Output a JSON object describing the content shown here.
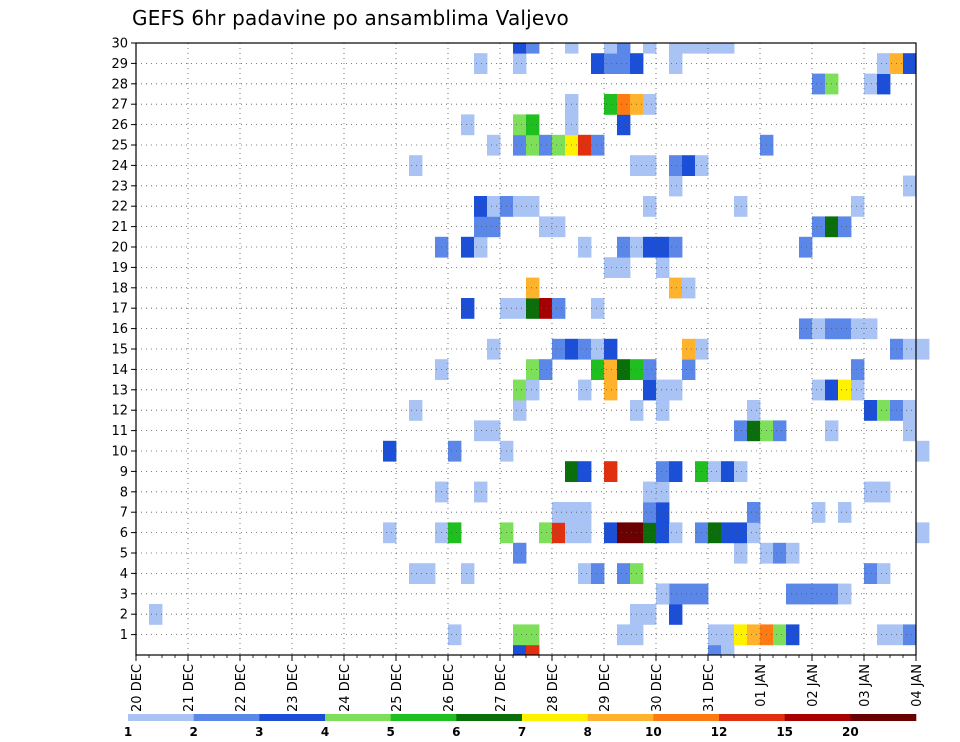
{
  "chart_data": {
    "type": "heatmap",
    "title": "GEFS 6hr padavine po ansamblima Valjevo",
    "x_tick_labels": [
      "20 DEC",
      "21 DEC",
      "22 DEC",
      "23 DEC",
      "24 DEC",
      "25 DEC",
      "26 DEC",
      "27 DEC",
      "28 DEC",
      "29 DEC",
      "30 DEC",
      "31 DEC",
      "01 JAN",
      "02 JAN",
      "03 JAN",
      "04 JAN"
    ],
    "y_tick_labels": [
      "1",
      "2",
      "3",
      "4",
      "5",
      "6",
      "7",
      "8",
      "9",
      "10",
      "11",
      "12",
      "13",
      "14",
      "15",
      "16",
      "17",
      "18",
      "19",
      "20",
      "21",
      "22",
      "23",
      "24",
      "25",
      "26",
      "27",
      "28",
      "29",
      "30"
    ],
    "xlim_steps": [
      0,
      60
    ],
    "ylim": [
      0,
      30
    ],
    "steps_per_day": 4,
    "grid": true,
    "colorbar": {
      "position": "bottom",
      "labels": [
        "1",
        "2",
        "3",
        "4",
        "5",
        "6",
        "7",
        "8",
        "10",
        "12",
        "15",
        "20"
      ],
      "colors": [
        "#a9c3f5",
        "#5a87e8",
        "#1b4fd8",
        "#7ee05a",
        "#1fbf1f",
        "#0a6e0a",
        "#fff200",
        "#ffb32c",
        "#ff7a10",
        "#e03010",
        "#a80000",
        "#6b0000"
      ]
    },
    "level_colors": {
      "1": "#a9c3f5",
      "2": "#5a87e8",
      "3": "#1b4fd8",
      "4": "#7ee05a",
      "5": "#1fbf1f",
      "6": "#0a6e0a",
      "7": "#fff200",
      "8": "#ffb32c",
      "9": "#ff7a10",
      "10": "#e03010",
      "11": "#a80000",
      "12": "#6b0000"
    },
    "cells_format": "[time_step_from_20DEC_00z, member_row, level_bin]",
    "cells": [
      [
        29,
        0,
        3
      ],
      [
        44,
        0,
        2
      ],
      [
        45,
        0,
        1
      ],
      [
        30,
        0,
        10
      ],
      [
        24,
        1,
        1
      ],
      [
        37,
        1,
        1
      ],
      [
        38,
        1,
        1
      ],
      [
        44,
        1,
        1
      ],
      [
        45,
        1,
        1
      ],
      [
        57,
        1,
        1
      ],
      [
        58,
        1,
        1
      ],
      [
        59,
        1,
        2
      ],
      [
        29,
        1,
        4
      ],
      [
        30,
        1,
        4
      ],
      [
        46,
        1,
        7
      ],
      [
        47,
        1,
        8
      ],
      [
        48,
        1,
        9
      ],
      [
        49,
        1,
        4
      ],
      [
        50,
        1,
        3
      ],
      [
        1,
        2,
        1
      ],
      [
        38,
        2,
        1
      ],
      [
        39,
        2,
        1
      ],
      [
        41,
        2,
        3
      ],
      [
        41,
        3,
        2
      ],
      [
        42,
        3,
        2
      ],
      [
        43,
        3,
        2
      ],
      [
        40,
        3,
        2
      ],
      [
        50,
        3,
        2
      ],
      [
        51,
        3,
        2
      ],
      [
        52,
        3,
        2
      ],
      [
        53,
        3,
        2
      ],
      [
        54,
        3,
        1
      ],
      [
        40,
        3,
        1
      ],
      [
        21,
        4,
        1
      ],
      [
        22,
        4,
        1
      ],
      [
        25,
        4,
        1
      ],
      [
        34,
        4,
        1
      ],
      [
        35,
        4,
        2
      ],
      [
        37,
        4,
        2
      ],
      [
        38,
        4,
        4
      ],
      [
        56,
        4,
        2
      ],
      [
        57,
        4,
        1
      ],
      [
        29,
        5,
        2
      ],
      [
        46,
        5,
        1
      ],
      [
        48,
        5,
        1
      ],
      [
        49,
        5,
        2
      ],
      [
        50,
        5,
        1
      ],
      [
        19,
        6,
        1
      ],
      [
        23,
        6,
        1
      ],
      [
        24,
        6,
        5
      ],
      [
        28,
        6,
        4
      ],
      [
        31,
        6,
        4
      ],
      [
        32,
        6,
        10
      ],
      [
        33,
        6,
        1
      ],
      [
        34,
        6,
        1
      ],
      [
        36,
        6,
        3
      ],
      [
        37,
        6,
        12
      ],
      [
        38,
        6,
        12
      ],
      [
        39,
        6,
        6
      ],
      [
        40,
        6,
        3
      ],
      [
        41,
        6,
        1
      ],
      [
        43,
        6,
        2
      ],
      [
        44,
        6,
        6
      ],
      [
        45,
        6,
        3
      ],
      [
        46,
        6,
        3
      ],
      [
        47,
        6,
        1
      ],
      [
        60,
        6,
        1
      ],
      [
        32,
        7,
        1
      ],
      [
        33,
        7,
        1
      ],
      [
        34,
        7,
        1
      ],
      [
        39,
        7,
        2
      ],
      [
        40,
        7,
        3
      ],
      [
        47,
        7,
        2
      ],
      [
        52,
        7,
        1
      ],
      [
        54,
        7,
        1
      ],
      [
        23,
        8,
        1
      ],
      [
        26,
        8,
        1
      ],
      [
        39,
        8,
        1
      ],
      [
        40,
        8,
        1
      ],
      [
        56,
        8,
        1
      ],
      [
        57,
        8,
        1
      ],
      [
        33,
        9,
        6
      ],
      [
        34,
        9,
        3
      ],
      [
        36,
        9,
        10
      ],
      [
        40,
        9,
        2
      ],
      [
        41,
        9,
        3
      ],
      [
        43,
        9,
        5
      ],
      [
        44,
        9,
        1
      ],
      [
        45,
        9,
        3
      ],
      [
        46,
        9,
        1
      ],
      [
        19,
        10,
        3
      ],
      [
        24,
        10,
        2
      ],
      [
        28,
        10,
        1
      ],
      [
        60,
        10,
        1
      ],
      [
        26,
        11,
        1
      ],
      [
        27,
        11,
        1
      ],
      [
        46,
        11,
        2
      ],
      [
        47,
        11,
        6
      ],
      [
        48,
        11,
        4
      ],
      [
        49,
        11,
        2
      ],
      [
        53,
        11,
        1
      ],
      [
        59,
        11,
        1
      ],
      [
        21,
        12,
        1
      ],
      [
        29,
        12,
        1
      ],
      [
        38,
        12,
        1
      ],
      [
        40,
        12,
        1
      ],
      [
        47,
        12,
        1
      ],
      [
        56,
        12,
        3
      ],
      [
        57,
        12,
        4
      ],
      [
        58,
        12,
        2
      ],
      [
        59,
        12,
        1
      ],
      [
        29,
        13,
        4
      ],
      [
        30,
        13,
        1
      ],
      [
        34,
        13,
        1
      ],
      [
        36,
        13,
        8
      ],
      [
        39,
        13,
        3
      ],
      [
        40,
        13,
        1
      ],
      [
        41,
        13,
        1
      ],
      [
        52,
        13,
        1
      ],
      [
        53,
        13,
        3
      ],
      [
        54,
        13,
        7
      ],
      [
        55,
        13,
        1
      ],
      [
        23,
        14,
        1
      ],
      [
        30,
        14,
        4
      ],
      [
        31,
        14,
        2
      ],
      [
        35,
        14,
        5
      ],
      [
        36,
        14,
        8
      ],
      [
        37,
        14,
        6
      ],
      [
        38,
        14,
        5
      ],
      [
        39,
        14,
        2
      ],
      [
        42,
        14,
        2
      ],
      [
        55,
        14,
        2
      ],
      [
        27,
        15,
        1
      ],
      [
        32,
        15,
        2
      ],
      [
        33,
        15,
        3
      ],
      [
        34,
        15,
        2
      ],
      [
        35,
        15,
        1
      ],
      [
        36,
        15,
        3
      ],
      [
        42,
        15,
        8
      ],
      [
        43,
        15,
        1
      ],
      [
        58,
        15,
        2
      ],
      [
        59,
        15,
        1
      ],
      [
        60,
        15,
        1
      ],
      [
        51,
        16,
        2
      ],
      [
        52,
        16,
        1
      ],
      [
        53,
        16,
        2
      ],
      [
        54,
        16,
        2
      ],
      [
        55,
        16,
        1
      ],
      [
        56,
        16,
        1
      ],
      [
        25,
        17,
        3
      ],
      [
        28,
        17,
        1
      ],
      [
        29,
        17,
        1
      ],
      [
        30,
        17,
        6
      ],
      [
        31,
        17,
        11
      ],
      [
        32,
        17,
        2
      ],
      [
        35,
        17,
        1
      ],
      [
        30,
        18,
        8
      ],
      [
        41,
        18,
        8
      ],
      [
        42,
        18,
        1
      ],
      [
        36,
        19,
        1
      ],
      [
        37,
        19,
        1
      ],
      [
        40,
        19,
        1
      ],
      [
        23,
        20,
        2
      ],
      [
        25,
        20,
        3
      ],
      [
        26,
        20,
        1
      ],
      [
        34,
        20,
        1
      ],
      [
        37,
        20,
        2
      ],
      [
        38,
        20,
        1
      ],
      [
        39,
        20,
        3
      ],
      [
        40,
        20,
        3
      ],
      [
        41,
        20,
        2
      ],
      [
        51,
        20,
        2
      ],
      [
        26,
        21,
        2
      ],
      [
        27,
        21,
        2
      ],
      [
        31,
        21,
        1
      ],
      [
        32,
        21,
        1
      ],
      [
        52,
        21,
        2
      ],
      [
        53,
        21,
        6
      ],
      [
        54,
        21,
        2
      ],
      [
        26,
        22,
        3
      ],
      [
        27,
        22,
        1
      ],
      [
        28,
        22,
        2
      ],
      [
        29,
        22,
        1
      ],
      [
        30,
        22,
        1
      ],
      [
        39,
        22,
        1
      ],
      [
        46,
        22,
        1
      ],
      [
        55,
        22,
        1
      ],
      [
        41,
        23,
        1
      ],
      [
        59,
        23,
        1
      ],
      [
        21,
        24,
        1
      ],
      [
        38,
        24,
        1
      ],
      [
        39,
        24,
        1
      ],
      [
        41,
        24,
        2
      ],
      [
        42,
        24,
        3
      ],
      [
        43,
        24,
        1
      ],
      [
        27,
        25,
        1
      ],
      [
        29,
        25,
        2
      ],
      [
        30,
        25,
        4
      ],
      [
        31,
        25,
        2
      ],
      [
        32,
        25,
        4
      ],
      [
        33,
        25,
        7
      ],
      [
        34,
        25,
        10
      ],
      [
        35,
        25,
        2
      ],
      [
        48,
        25,
        2
      ],
      [
        25,
        26,
        1
      ],
      [
        29,
        26,
        4
      ],
      [
        30,
        26,
        5
      ],
      [
        33,
        26,
        1
      ],
      [
        37,
        26,
        3
      ],
      [
        33,
        27,
        1
      ],
      [
        36,
        27,
        5
      ],
      [
        37,
        27,
        9
      ],
      [
        38,
        27,
        8
      ],
      [
        39,
        27,
        1
      ],
      [
        52,
        28,
        2
      ],
      [
        53,
        28,
        4
      ],
      [
        56,
        28,
        1
      ],
      [
        57,
        28,
        3
      ],
      [
        26,
        29,
        1
      ],
      [
        29,
        29,
        1
      ],
      [
        35,
        29,
        3
      ],
      [
        36,
        29,
        2
      ],
      [
        37,
        29,
        2
      ],
      [
        38,
        29,
        3
      ],
      [
        41,
        29,
        1
      ],
      [
        57,
        29,
        1
      ],
      [
        58,
        29,
        8
      ],
      [
        59,
        29,
        3
      ],
      [
        29,
        30,
        3
      ],
      [
        30,
        30,
        2
      ],
      [
        33,
        30,
        1
      ],
      [
        36,
        30,
        1
      ],
      [
        37,
        30,
        2
      ],
      [
        39,
        30,
        1
      ],
      [
        41,
        30,
        1
      ],
      [
        42,
        30,
        1
      ],
      [
        43,
        30,
        1
      ],
      [
        44,
        30,
        1
      ],
      [
        45,
        30,
        1
      ]
    ]
  }
}
